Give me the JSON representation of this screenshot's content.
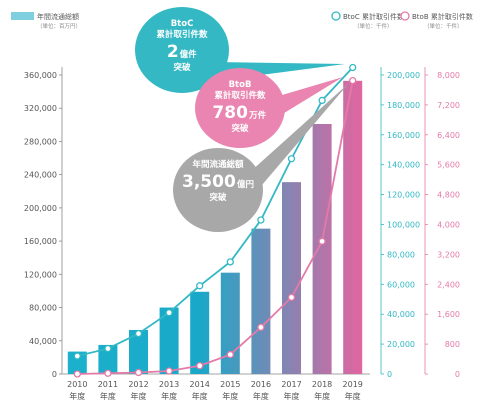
{
  "chart_data": {
    "type": "bar",
    "categories": [
      "2010",
      "2011",
      "2012",
      "2013",
      "2014",
      "2015",
      "2016",
      "2017",
      "2018",
      "2019"
    ],
    "category_suffix": "年度",
    "series": [
      {
        "name": "年間流通総額",
        "unit": "（単位：百万円）",
        "chart_type": "bar",
        "axis": "left",
        "color_start": "#1bb1cc",
        "color_end": "#e8639e",
        "values": [
          27000,
          35000,
          53000,
          80000,
          99000,
          122000,
          175000,
          231000,
          301000,
          353000
        ]
      },
      {
        "name": "BtoC 累計取引件数",
        "unit": "（単位：千件）",
        "chart_type": "line",
        "axis": "right1",
        "color": "#33b8c4",
        "values": [
          12000,
          17000,
          27000,
          41000,
          59000,
          75000,
          103000,
          144000,
          183000,
          205000
        ]
      },
      {
        "name": "BtoB 累計取引件数",
        "unit": "（単位：千件）",
        "chart_type": "line",
        "axis": "right2",
        "color": "#e57aa8",
        "values": [
          0,
          20,
          40,
          80,
          220,
          520,
          1250,
          2050,
          3550,
          7850
        ]
      }
    ],
    "y_left": {
      "min": 0,
      "max": 360000,
      "ticks": [
        "0",
        "40,000",
        "80,000",
        "120,000",
        "160,000",
        "200,000",
        "240,000",
        "280,000",
        "320,000",
        "360,000"
      ]
    },
    "y_right1": {
      "min": 0,
      "max": 200000,
      "color": "#33b8c4",
      "ticks": [
        "0",
        "20,000",
        "40,000",
        "60,000",
        "80,000",
        "100,000",
        "120,000",
        "140,000",
        "160,000",
        "180,000",
        "200,000"
      ]
    },
    "y_right2": {
      "min": 0,
      "max": 8000,
      "color": "#e57aa8",
      "ticks": [
        "0",
        "800",
        "1,600",
        "2,400",
        "3,200",
        "4,000",
        "4,800",
        "5,600",
        "6,400",
        "7,200",
        "8,000"
      ]
    },
    "callouts": [
      {
        "lines": [
          "BtoC",
          "累計取引件数"
        ],
        "big": "2",
        "big_suffix": "億件",
        "tail": "突破",
        "color": "#33b8c4"
      },
      {
        "lines": [
          "BtoB",
          "累計取引件数"
        ],
        "big": "780",
        "big_suffix": "万件",
        "tail": "突破",
        "color": "#e985b0"
      },
      {
        "lines": [
          "年間流通総額"
        ],
        "big": "3,500",
        "big_suffix": "億円",
        "tail": "突破",
        "color": "#a8a8a8"
      }
    ],
    "grid": false
  }
}
